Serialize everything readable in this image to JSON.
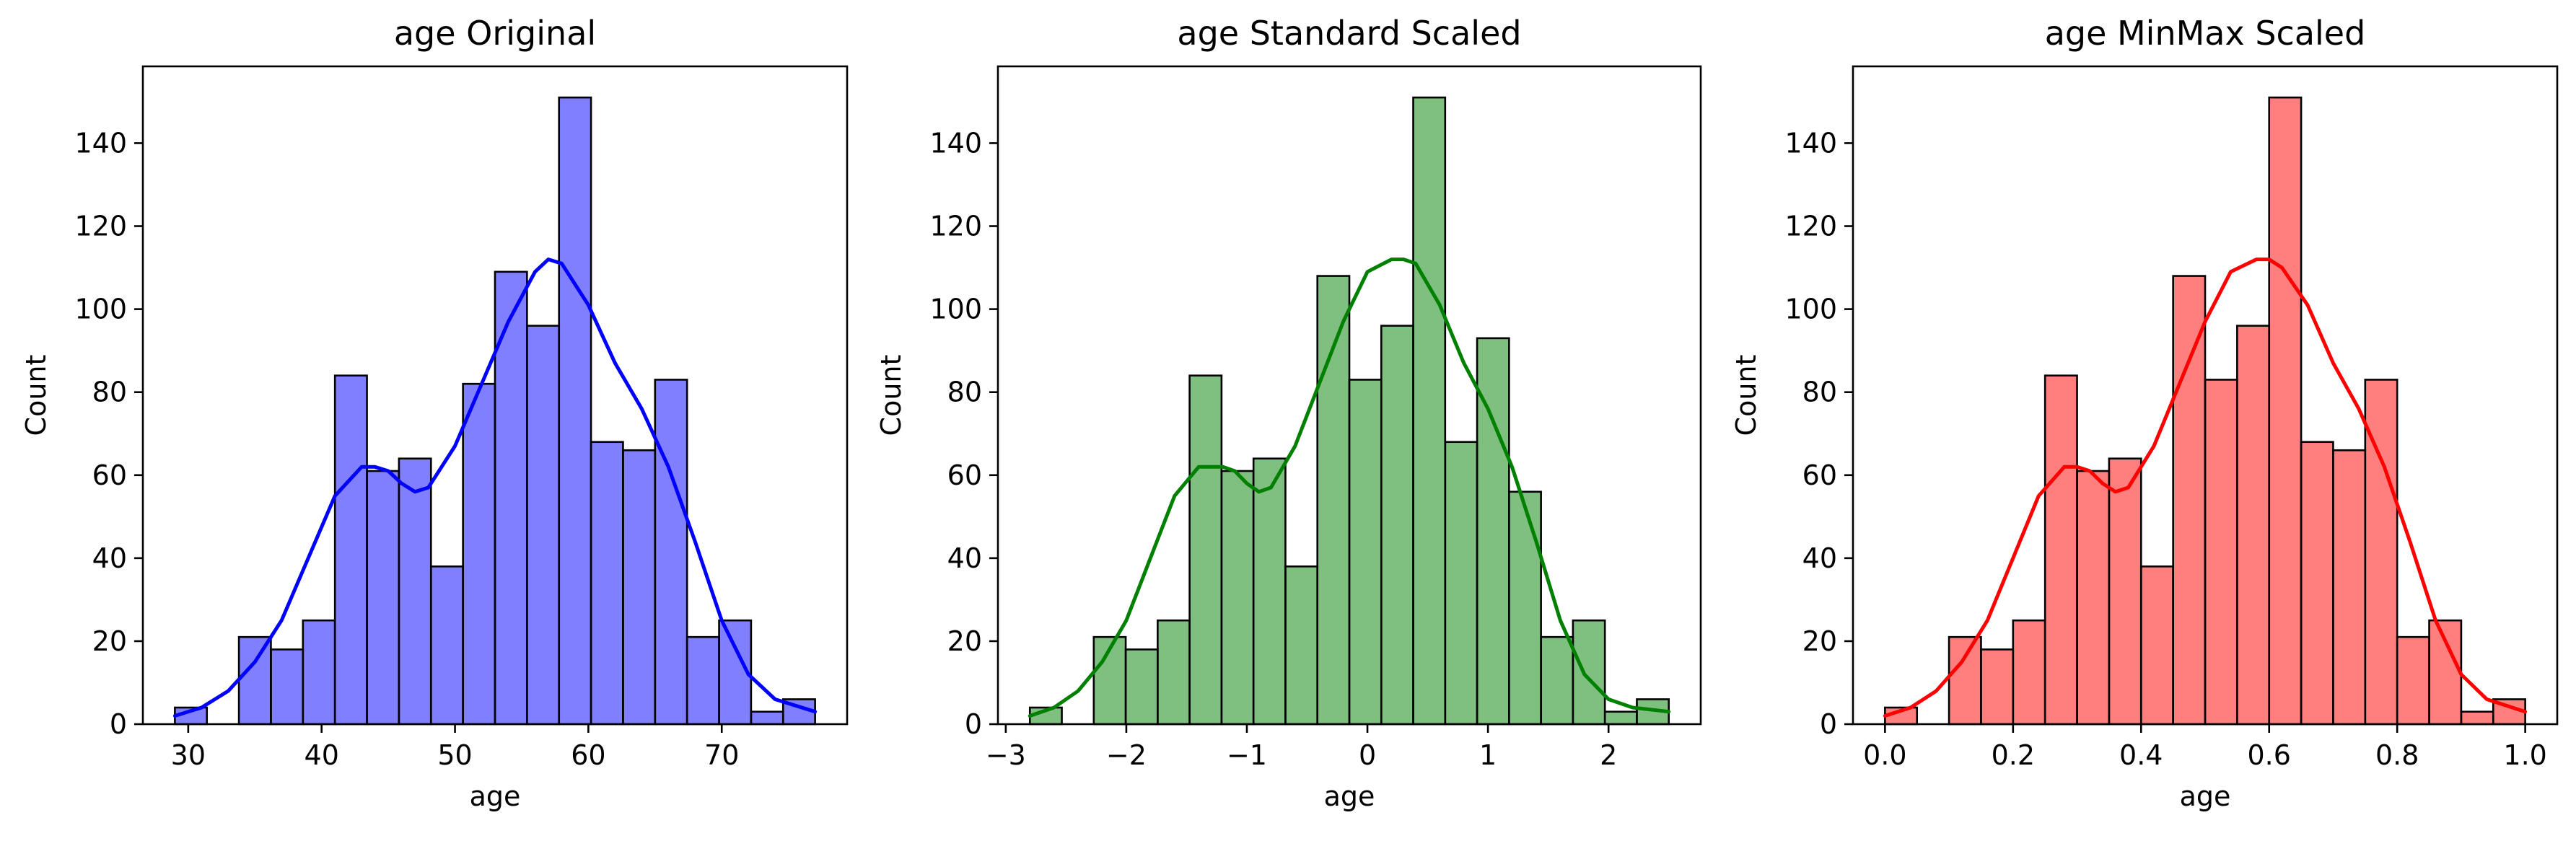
{
  "chart_data": [
    {
      "type": "bar",
      "title": "age Original",
      "xlabel": "age",
      "ylabel": "Count",
      "color": "#0000ff",
      "bin_edges": [
        29,
        31.4,
        33.8,
        36.2,
        38.6,
        41.0,
        43.4,
        45.8,
        48.2,
        50.6,
        53.0,
        55.4,
        57.8,
        60.2,
        62.6,
        65.0,
        67.4,
        69.8,
        72.2,
        74.6,
        77.0
      ],
      "values": [
        4,
        0,
        21,
        18,
        25,
        84,
        61,
        64,
        38,
        82,
        109,
        96,
        151,
        68,
        66,
        83,
        21,
        25,
        3,
        6
      ],
      "kde": {
        "x": [
          29,
          31,
          33,
          35,
          37,
          39,
          41,
          43,
          44,
          45,
          46,
          47,
          48,
          50,
          52,
          54,
          56,
          57,
          58,
          60,
          62,
          64,
          66,
          68,
          70,
          72,
          74,
          77
        ],
        "y": [
          2,
          4,
          8,
          15,
          25,
          40,
          55,
          62,
          62,
          61,
          58,
          56,
          57,
          67,
          82,
          97,
          109,
          112,
          111,
          101,
          87,
          76,
          62,
          44,
          25,
          12,
          6,
          3
        ]
      },
      "xlim": [
        26.6,
        79.4
      ],
      "ylim": [
        0,
        158.5
      ],
      "xticks": [
        30,
        40,
        50,
        60,
        70
      ],
      "xtick_labels": [
        "30",
        "40",
        "50",
        "60",
        "70"
      ],
      "yticks": [
        0,
        20,
        40,
        60,
        80,
        100,
        120,
        140
      ],
      "ytick_labels": [
        "0",
        "20",
        "40",
        "60",
        "80",
        "100",
        "120",
        "140"
      ]
    },
    {
      "type": "bar",
      "title": "age Standard Scaled",
      "xlabel": "age",
      "ylabel": "Count",
      "color": "#008000",
      "bin_edges": [
        -2.8,
        -2.535,
        -2.27,
        -2.005,
        -1.74,
        -1.475,
        -1.21,
        -0.945,
        -0.68,
        -0.415,
        -0.15,
        0.115,
        0.38,
        0.645,
        0.91,
        1.175,
        1.44,
        1.705,
        1.97,
        2.235,
        2.5
      ],
      "values": [
        4,
        0,
        21,
        18,
        25,
        84,
        61,
        64,
        38,
        108,
        83,
        96,
        151,
        68,
        93,
        56,
        21,
        25,
        3,
        6
      ],
      "kde": {
        "x": [
          -2.8,
          -2.6,
          -2.4,
          -2.2,
          -2.0,
          -1.8,
          -1.6,
          -1.4,
          -1.2,
          -1.1,
          -1.0,
          -0.9,
          -0.8,
          -0.6,
          -0.4,
          -0.2,
          0.0,
          0.2,
          0.3,
          0.4,
          0.6,
          0.8,
          1.0,
          1.2,
          1.4,
          1.6,
          1.8,
          2.0,
          2.2,
          2.5
        ],
        "y": [
          2,
          4,
          8,
          15,
          25,
          40,
          55,
          62,
          62,
          61,
          58,
          56,
          57,
          67,
          82,
          97,
          109,
          112,
          112,
          111,
          101,
          87,
          76,
          62,
          44,
          25,
          12,
          6,
          4,
          3
        ]
      },
      "xlim": [
        -3.065,
        2.765
      ],
      "ylim": [
        0,
        158.5
      ],
      "xticks": [
        -3,
        -2,
        -1,
        0,
        1,
        2
      ],
      "xtick_labels": [
        "−3",
        "−2",
        "−1",
        "0",
        "1",
        "2"
      ],
      "yticks": [
        0,
        20,
        40,
        60,
        80,
        100,
        120,
        140
      ],
      "ytick_labels": [
        "0",
        "20",
        "40",
        "60",
        "80",
        "100",
        "120",
        "140"
      ]
    },
    {
      "type": "bar",
      "title": "age MinMax Scaled",
      "xlabel": "age",
      "ylabel": "Count",
      "color": "#ff0000",
      "bin_edges": [
        0.0,
        0.05,
        0.1,
        0.15,
        0.2,
        0.25,
        0.3,
        0.35,
        0.4,
        0.45,
        0.5,
        0.55,
        0.6,
        0.65,
        0.7,
        0.75,
        0.8,
        0.85,
        0.9,
        0.95,
        1.0
      ],
      "values": [
        4,
        0,
        21,
        18,
        25,
        84,
        61,
        64,
        38,
        108,
        83,
        96,
        151,
        68,
        66,
        83,
        21,
        25,
        3,
        6
      ],
      "kde": {
        "x": [
          0.0,
          0.04,
          0.08,
          0.12,
          0.16,
          0.2,
          0.24,
          0.28,
          0.3,
          0.32,
          0.34,
          0.36,
          0.38,
          0.42,
          0.46,
          0.5,
          0.54,
          0.58,
          0.6,
          0.62,
          0.66,
          0.7,
          0.74,
          0.78,
          0.82,
          0.86,
          0.9,
          0.94,
          1.0
        ],
        "y": [
          2,
          4,
          8,
          15,
          25,
          40,
          55,
          62,
          62,
          61,
          58,
          56,
          57,
          67,
          82,
          97,
          109,
          112,
          112,
          110,
          101,
          87,
          76,
          62,
          44,
          25,
          12,
          6,
          3
        ]
      },
      "xlim": [
        -0.05,
        1.05
      ],
      "ylim": [
        0,
        158.5
      ],
      "xticks": [
        0.0,
        0.2,
        0.4,
        0.6,
        0.8,
        1.0
      ],
      "xtick_labels": [
        "0.0",
        "0.2",
        "0.4",
        "0.6",
        "0.8",
        "1.0"
      ],
      "yticks": [
        0,
        20,
        40,
        60,
        80,
        100,
        120,
        140
      ],
      "ytick_labels": [
        "0",
        "20",
        "40",
        "60",
        "80",
        "100",
        "120",
        "140"
      ]
    }
  ]
}
